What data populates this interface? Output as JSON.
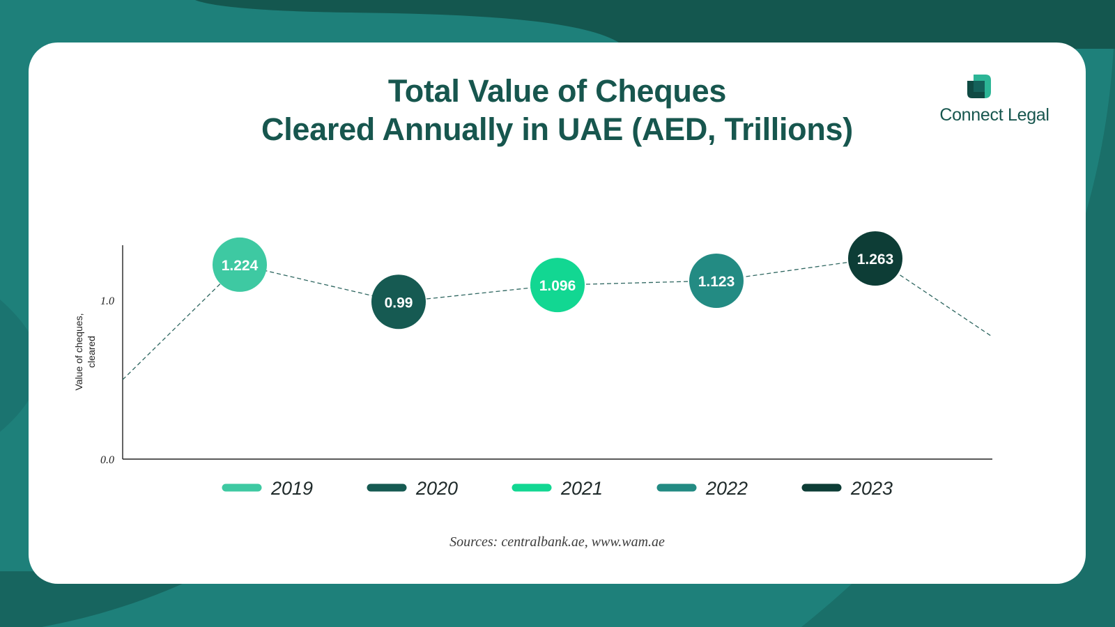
{
  "brand": {
    "name": "Connect Legal",
    "logo_icon": "overlapping-squares-icon"
  },
  "chart_data": {
    "type": "line",
    "title": "Total Value of Cheques",
    "subtitle": "Cleared Annually in UAE (AED, Trillions)",
    "ylabel_lines": [
      "Value of cheques,",
      "cleared"
    ],
    "ylim": [
      0,
      1.3
    ],
    "yticks": [
      0,
      1.0
    ],
    "ytick_labels": [
      "0.0",
      "1.0"
    ],
    "grid": false,
    "legend_position": "bottom",
    "x": [
      "2019",
      "2020",
      "2021",
      "2022",
      "2023"
    ],
    "values": [
      1.224,
      0.99,
      1.096,
      1.123,
      1.263
    ],
    "value_labels": [
      "1.224",
      "0.99",
      "1.096",
      "1.123",
      "1.263"
    ],
    "colors": [
      "#3ec9a2",
      "#165a52",
      "#12d792",
      "#238b83",
      "#0d3d36"
    ],
    "line_style": "dashed",
    "trend_in": 0.5,
    "trend_out": 0.77
  },
  "footer": {
    "sources": "Sources: centralbank.ae, www.wam.ae"
  }
}
